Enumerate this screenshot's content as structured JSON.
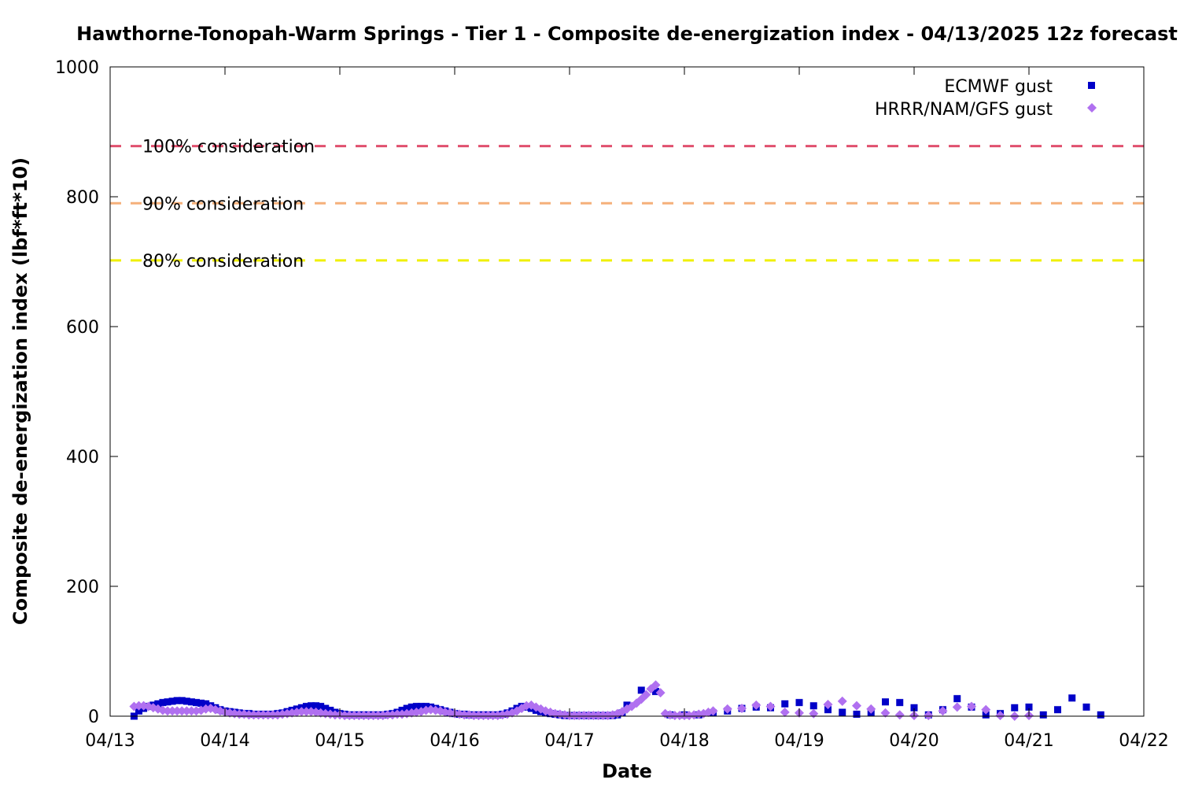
{
  "chart_data": {
    "type": "scatter",
    "title": "Hawthorne-Tonopah-Warm Springs - Tier 1 - Composite de-energization index - 04/13/2025 12z forecast",
    "xlabel": "Date",
    "ylabel": "Composite de-energization index (lbf*ft*10)",
    "x_ticks": [
      "04/13",
      "04/14",
      "04/15",
      "04/16",
      "04/17",
      "04/18",
      "04/19",
      "04/20",
      "04/21",
      "04/22"
    ],
    "xlim": [
      "04/13 00:00",
      "04/22 00:00"
    ],
    "y_ticks": [
      "0",
      "200",
      "400",
      "600",
      "800",
      "1000"
    ],
    "ylim": [
      0,
      1000
    ],
    "grid": false,
    "legend_position": "top-right",
    "thresholds": [
      {
        "label": "100% consideration",
        "value": 878,
        "color": "#e0506e"
      },
      {
        "label": "90% consideration",
        "value": 790,
        "color": "#f5b07a"
      },
      {
        "label": "80% consideration",
        "value": 702,
        "color": "#f0f000"
      }
    ],
    "series": [
      {
        "name": "ECMWF gust",
        "color": "#0000c8",
        "marker": "square",
        "points": [
          [
            "04/13 05:00",
            0
          ],
          [
            "04/13 06:00",
            8
          ],
          [
            "04/13 07:00",
            12
          ],
          [
            "04/13 08:00",
            15
          ],
          [
            "04/13 09:00",
            17
          ],
          [
            "04/13 10:00",
            19
          ],
          [
            "04/13 11:00",
            21
          ],
          [
            "04/13 12:00",
            22
          ],
          [
            "04/13 13:00",
            23
          ],
          [
            "04/13 14:00",
            24
          ],
          [
            "04/13 15:00",
            24
          ],
          [
            "04/13 16:00",
            23
          ],
          [
            "04/13 17:00",
            22
          ],
          [
            "04/13 18:00",
            21
          ],
          [
            "04/13 19:00",
            20
          ],
          [
            "04/13 20:00",
            19
          ],
          [
            "04/13 21:00",
            16
          ],
          [
            "04/13 22:00",
            13
          ],
          [
            "04/13 23:00",
            10
          ],
          [
            "04/14 00:00",
            8
          ],
          [
            "04/14 01:00",
            7
          ],
          [
            "04/14 02:00",
            6
          ],
          [
            "04/14 03:00",
            5
          ],
          [
            "04/14 04:00",
            4
          ],
          [
            "04/14 05:00",
            4
          ],
          [
            "04/14 06:00",
            3
          ],
          [
            "04/14 07:00",
            3
          ],
          [
            "04/14 08:00",
            3
          ],
          [
            "04/14 09:00",
            3
          ],
          [
            "04/14 10:00",
            3
          ],
          [
            "04/14 11:00",
            4
          ],
          [
            "04/14 12:00",
            5
          ],
          [
            "04/14 13:00",
            7
          ],
          [
            "04/14 14:00",
            9
          ],
          [
            "04/14 15:00",
            11
          ],
          [
            "04/14 16:00",
            13
          ],
          [
            "04/14 17:00",
            15
          ],
          [
            "04/14 18:00",
            16
          ],
          [
            "04/14 19:00",
            16
          ],
          [
            "04/14 20:00",
            15
          ],
          [
            "04/14 21:00",
            12
          ],
          [
            "04/14 22:00",
            9
          ],
          [
            "04/14 23:00",
            6
          ],
          [
            "04/15 00:00",
            4
          ],
          [
            "04/15 01:00",
            3
          ],
          [
            "04/15 02:00",
            2
          ],
          [
            "04/15 03:00",
            2
          ],
          [
            "04/15 04:00",
            2
          ],
          [
            "04/15 05:00",
            2
          ],
          [
            "04/15 06:00",
            2
          ],
          [
            "04/15 07:00",
            2
          ],
          [
            "04/15 08:00",
            2
          ],
          [
            "04/15 09:00",
            2
          ],
          [
            "04/15 10:00",
            3
          ],
          [
            "04/15 11:00",
            4
          ],
          [
            "04/15 12:00",
            6
          ],
          [
            "04/15 13:00",
            9
          ],
          [
            "04/15 14:00",
            12
          ],
          [
            "04/15 15:00",
            14
          ],
          [
            "04/15 16:00",
            15
          ],
          [
            "04/15 17:00",
            15
          ],
          [
            "04/15 18:00",
            15
          ],
          [
            "04/15 19:00",
            14
          ],
          [
            "04/15 20:00",
            12
          ],
          [
            "04/15 21:00",
            10
          ],
          [
            "04/15 22:00",
            8
          ],
          [
            "04/15 23:00",
            6
          ],
          [
            "04/16 00:00",
            4
          ],
          [
            "04/16 01:00",
            3
          ],
          [
            "04/16 02:00",
            3
          ],
          [
            "04/16 03:00",
            2
          ],
          [
            "04/16 04:00",
            2
          ],
          [
            "04/16 05:00",
            2
          ],
          [
            "04/16 06:00",
            2
          ],
          [
            "04/16 07:00",
            2
          ],
          [
            "04/16 08:00",
            2
          ],
          [
            "04/16 09:00",
            2
          ],
          [
            "04/16 10:00",
            3
          ],
          [
            "04/16 11:00",
            5
          ],
          [
            "04/16 12:00",
            8
          ],
          [
            "04/16 13:00",
            12
          ],
          [
            "04/16 14:00",
            15
          ],
          [
            "04/16 15:00",
            14
          ],
          [
            "04/16 16:00",
            12
          ],
          [
            "04/16 17:00",
            9
          ],
          [
            "04/16 18:00",
            7
          ],
          [
            "04/16 19:00",
            5
          ],
          [
            "04/16 20:00",
            4
          ],
          [
            "04/16 21:00",
            3
          ],
          [
            "04/16 22:00",
            2
          ],
          [
            "04/16 23:00",
            1
          ],
          [
            "04/17 00:00",
            1
          ],
          [
            "04/17 01:00",
            1
          ],
          [
            "04/17 02:00",
            1
          ],
          [
            "04/17 03:00",
            1
          ],
          [
            "04/17 04:00",
            1
          ],
          [
            "04/17 05:00",
            1
          ],
          [
            "04/17 06:00",
            1
          ],
          [
            "04/17 07:00",
            1
          ],
          [
            "04/17 08:00",
            1
          ],
          [
            "04/17 09:00",
            1
          ],
          [
            "04/17 10:00",
            2
          ],
          [
            "04/17 11:00",
            5
          ],
          [
            "04/17 12:00",
            17
          ],
          [
            "04/17 15:00",
            40
          ],
          [
            "04/17 18:00",
            38
          ],
          [
            "04/17 21:00",
            2
          ],
          [
            "04/18 00:00",
            2
          ],
          [
            "04/18 03:00",
            2
          ],
          [
            "04/18 06:00",
            5
          ],
          [
            "04/18 09:00",
            8
          ],
          [
            "04/18 12:00",
            12
          ],
          [
            "04/18 15:00",
            14
          ],
          [
            "04/18 18:00",
            13
          ],
          [
            "04/18 21:00",
            19
          ],
          [
            "04/19 00:00",
            21
          ],
          [
            "04/19 03:00",
            16
          ],
          [
            "04/19 06:00",
            10
          ],
          [
            "04/19 09:00",
            6
          ],
          [
            "04/19 12:00",
            3
          ],
          [
            "04/19 15:00",
            5
          ],
          [
            "04/19 18:00",
            22
          ],
          [
            "04/19 21:00",
            21
          ],
          [
            "04/20 00:00",
            13
          ],
          [
            "04/20 03:00",
            2
          ],
          [
            "04/20 06:00",
            10
          ],
          [
            "04/20 09:00",
            27
          ],
          [
            "04/20 12:00",
            14
          ],
          [
            "04/20 15:00",
            2
          ],
          [
            "04/20 18:00",
            4
          ],
          [
            "04/20 21:00",
            13
          ],
          [
            "04/21 00:00",
            14
          ],
          [
            "04/21 03:00",
            2
          ],
          [
            "04/21 06:00",
            10
          ],
          [
            "04/21 09:00",
            28
          ],
          [
            "04/21 12:00",
            14
          ],
          [
            "04/21 15:00",
            2
          ]
        ]
      },
      {
        "name": "HRRR/NAM/GFS gust",
        "color": "#b070f0",
        "marker": "diamond",
        "points": [
          [
            "04/13 05:00",
            15
          ],
          [
            "04/13 06:00",
            16
          ],
          [
            "04/13 07:00",
            16
          ],
          [
            "04/13 08:00",
            15
          ],
          [
            "04/13 09:00",
            13
          ],
          [
            "04/13 10:00",
            11
          ],
          [
            "04/13 11:00",
            9
          ],
          [
            "04/13 12:00",
            8
          ],
          [
            "04/13 13:00",
            8
          ],
          [
            "04/13 14:00",
            8
          ],
          [
            "04/13 15:00",
            8
          ],
          [
            "04/13 16:00",
            8
          ],
          [
            "04/13 17:00",
            8
          ],
          [
            "04/13 18:00",
            8
          ],
          [
            "04/13 19:00",
            9
          ],
          [
            "04/13 20:00",
            11
          ],
          [
            "04/13 21:00",
            12
          ],
          [
            "04/13 22:00",
            10
          ],
          [
            "04/13 23:00",
            8
          ],
          [
            "04/14 00:00",
            6
          ],
          [
            "04/14 01:00",
            5
          ],
          [
            "04/14 02:00",
            4
          ],
          [
            "04/14 03:00",
            3
          ],
          [
            "04/14 04:00",
            3
          ],
          [
            "04/14 05:00",
            2
          ],
          [
            "04/14 06:00",
            2
          ],
          [
            "04/14 07:00",
            2
          ],
          [
            "04/14 08:00",
            2
          ],
          [
            "04/14 09:00",
            2
          ],
          [
            "04/14 10:00",
            2
          ],
          [
            "04/14 11:00",
            2
          ],
          [
            "04/14 12:00",
            3
          ],
          [
            "04/14 13:00",
            4
          ],
          [
            "04/14 14:00",
            5
          ],
          [
            "04/14 15:00",
            6
          ],
          [
            "04/14 16:00",
            7
          ],
          [
            "04/14 17:00",
            7
          ],
          [
            "04/14 18:00",
            7
          ],
          [
            "04/14 19:00",
            6
          ],
          [
            "04/14 20:00",
            5
          ],
          [
            "04/14 21:00",
            4
          ],
          [
            "04/14 22:00",
            3
          ],
          [
            "04/14 23:00",
            2
          ],
          [
            "04/15 00:00",
            2
          ],
          [
            "04/15 01:00",
            1
          ],
          [
            "04/15 02:00",
            1
          ],
          [
            "04/15 03:00",
            1
          ],
          [
            "04/15 04:00",
            1
          ],
          [
            "04/15 05:00",
            1
          ],
          [
            "04/15 06:00",
            1
          ],
          [
            "04/15 07:00",
            1
          ],
          [
            "04/15 08:00",
            1
          ],
          [
            "04/15 09:00",
            1
          ],
          [
            "04/15 10:00",
            2
          ],
          [
            "04/15 11:00",
            2
          ],
          [
            "04/15 12:00",
            3
          ],
          [
            "04/15 13:00",
            3
          ],
          [
            "04/15 14:00",
            4
          ],
          [
            "04/15 15:00",
            5
          ],
          [
            "04/15 16:00",
            6
          ],
          [
            "04/15 17:00",
            7
          ],
          [
            "04/15 18:00",
            9
          ],
          [
            "04/15 19:00",
            10
          ],
          [
            "04/15 20:00",
            9
          ],
          [
            "04/15 21:00",
            8
          ],
          [
            "04/15 22:00",
            6
          ],
          [
            "04/15 23:00",
            5
          ],
          [
            "04/16 00:00",
            4
          ],
          [
            "04/16 01:00",
            3
          ],
          [
            "04/16 02:00",
            2
          ],
          [
            "04/16 03:00",
            2
          ],
          [
            "04/16 04:00",
            1
          ],
          [
            "04/16 05:00",
            1
          ],
          [
            "04/16 06:00",
            1
          ],
          [
            "04/16 07:00",
            1
          ],
          [
            "04/16 08:00",
            1
          ],
          [
            "04/16 09:00",
            1
          ],
          [
            "04/16 10:00",
            2
          ],
          [
            "04/16 11:00",
            3
          ],
          [
            "04/16 12:00",
            5
          ],
          [
            "04/16 13:00",
            8
          ],
          [
            "04/16 14:00",
            12
          ],
          [
            "04/16 15:00",
            16
          ],
          [
            "04/16 16:00",
            17
          ],
          [
            "04/16 17:00",
            14
          ],
          [
            "04/16 18:00",
            11
          ],
          [
            "04/16 19:00",
            8
          ],
          [
            "04/16 20:00",
            6
          ],
          [
            "04/16 21:00",
            4
          ],
          [
            "04/16 22:00",
            3
          ],
          [
            "04/16 23:00",
            2
          ],
          [
            "04/17 00:00",
            1
          ],
          [
            "04/17 01:00",
            1
          ],
          [
            "04/17 02:00",
            1
          ],
          [
            "04/17 03:00",
            1
          ],
          [
            "04/17 04:00",
            1
          ],
          [
            "04/17 05:00",
            1
          ],
          [
            "04/17 06:00",
            1
          ],
          [
            "04/17 07:00",
            1
          ],
          [
            "04/17 08:00",
            1
          ],
          [
            "04/17 09:00",
            2
          ],
          [
            "04/17 10:00",
            4
          ],
          [
            "04/17 11:00",
            7
          ],
          [
            "04/17 12:00",
            11
          ],
          [
            "04/17 13:00",
            15
          ],
          [
            "04/17 14:00",
            20
          ],
          [
            "04/17 15:00",
            26
          ],
          [
            "04/17 16:00",
            33
          ],
          [
            "04/17 17:00",
            42
          ],
          [
            "04/17 18:00",
            48
          ],
          [
            "04/17 19:00",
            36
          ],
          [
            "04/17 20:00",
            4
          ],
          [
            "04/17 21:00",
            2
          ],
          [
            "04/17 22:00",
            1
          ],
          [
            "04/17 23:00",
            1
          ],
          [
            "04/18 00:00",
            1
          ],
          [
            "04/18 01:00",
            1
          ],
          [
            "04/18 02:00",
            2
          ],
          [
            "04/18 03:00",
            3
          ],
          [
            "04/18 04:00",
            4
          ],
          [
            "04/18 05:00",
            6
          ],
          [
            "04/18 06:00",
            8
          ],
          [
            "04/18 09:00",
            11
          ],
          [
            "04/18 12:00",
            12
          ],
          [
            "04/18 15:00",
            17
          ],
          [
            "04/18 18:00",
            15
          ],
          [
            "04/18 21:00",
            6
          ],
          [
            "04/19 00:00",
            5
          ],
          [
            "04/19 03:00",
            4
          ],
          [
            "04/19 06:00",
            18
          ],
          [
            "04/19 09:00",
            23
          ],
          [
            "04/19 12:00",
            16
          ],
          [
            "04/19 15:00",
            11
          ],
          [
            "04/19 18:00",
            5
          ],
          [
            "04/19 21:00",
            2
          ],
          [
            "04/20 00:00",
            1
          ],
          [
            "04/20 03:00",
            1
          ],
          [
            "04/20 06:00",
            8
          ],
          [
            "04/20 09:00",
            14
          ],
          [
            "04/20 12:00",
            15
          ],
          [
            "04/20 15:00",
            10
          ],
          [
            "04/20 18:00",
            1
          ],
          [
            "04/20 21:00",
            0
          ],
          [
            "04/21 00:00",
            1
          ]
        ]
      }
    ]
  }
}
